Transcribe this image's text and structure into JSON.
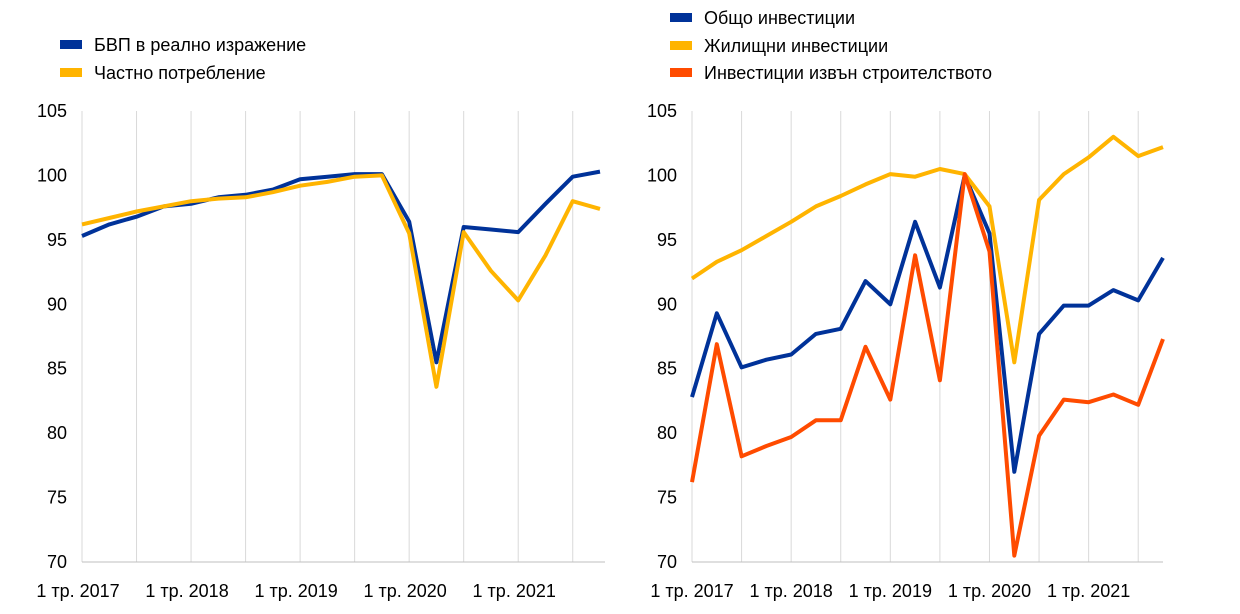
{
  "colors": {
    "blue": "#003299",
    "yellow": "#FFB400",
    "orange": "#FF4B00",
    "grid": "#d9d9d9",
    "axis": "#bfbfbf"
  },
  "chart_data": [
    {
      "type": "line",
      "x": [
        "1 тр. 2017",
        "2 тр. 2017",
        "3 тр. 2017",
        "4 тр. 2017",
        "1 тр. 2018",
        "2 тр. 2018",
        "3 тр. 2018",
        "4 тр. 2018",
        "1 тр. 2019",
        "2 тр. 2019",
        "3 тр. 2019",
        "4 тр. 2019",
        "1 тр. 2020",
        "2 тр. 2020",
        "3 тр. 2020",
        "4 тр. 2020",
        "1 тр. 2021",
        "2 тр. 2021",
        "3 тр. 2021",
        "4 тр. 2021"
      ],
      "x_tick_labels": [
        "1 тр. 2017",
        "1 тр. 2018",
        "1 тр. 2019",
        "1 тр. 2020",
        "1 тр. 2021"
      ],
      "y_ticks": [
        70,
        75,
        80,
        85,
        90,
        95,
        100,
        105
      ],
      "ylim": [
        70,
        105
      ],
      "grid": "vertical",
      "legend": "top-left",
      "series": [
        {
          "name": "БВП в реално изражение",
          "color": "#003299",
          "values": [
            95.3,
            96.2,
            96.8,
            97.6,
            97.8,
            98.3,
            98.5,
            98.9,
            99.7,
            99.9,
            100.1,
            100.1,
            96.4,
            85.5,
            96.0,
            95.8,
            95.6,
            97.8,
            99.9,
            100.3
          ]
        },
        {
          "name": "Частно потребление",
          "color": "#FFB400",
          "values": [
            96.2,
            96.7,
            97.2,
            97.6,
            98.0,
            98.2,
            98.3,
            98.7,
            99.2,
            99.5,
            99.9,
            100.0,
            95.5,
            83.6,
            95.6,
            92.6,
            90.3,
            93.8,
            98.0,
            97.4
          ]
        }
      ]
    },
    {
      "type": "line",
      "x": [
        "1 тр. 2017",
        "2 тр. 2017",
        "3 тр. 2017",
        "4 тр. 2017",
        "1 тр. 2018",
        "2 тр. 2018",
        "3 тр. 2018",
        "4 тр. 2018",
        "1 тр. 2019",
        "2 тр. 2019",
        "3 тр. 2019",
        "4 тр. 2019",
        "1 тр. 2020",
        "2 тр. 2020",
        "3 тр. 2020",
        "4 тр. 2020",
        "1 тр. 2021",
        "2 тр. 2021",
        "3 тр. 2021",
        "4 тр. 2021"
      ],
      "x_tick_labels": [
        "1 тр. 2017",
        "1 тр. 2018",
        "1 тр. 2019",
        "1 тр. 2020",
        "1 тр. 2021"
      ],
      "y_ticks": [
        70,
        75,
        80,
        85,
        90,
        95,
        100,
        105
      ],
      "ylim": [
        70,
        105
      ],
      "grid": "vertical",
      "legend": "top-left",
      "series": [
        {
          "name": "Общо инвестиции",
          "color": "#003299",
          "values": [
            82.8,
            89.3,
            85.1,
            85.7,
            86.1,
            87.7,
            88.1,
            91.8,
            90.0,
            96.4,
            91.3,
            100.0,
            95.5,
            77.0,
            87.7,
            89.9,
            89.9,
            91.1,
            90.3,
            93.6
          ]
        },
        {
          "name": "Жилищни инвестиции",
          "color": "#FFB400",
          "values": [
            92.0,
            93.3,
            94.2,
            95.3,
            96.4,
            97.6,
            98.4,
            99.3,
            100.1,
            99.9,
            100.5,
            100.1,
            97.6,
            85.5,
            98.1,
            100.1,
            101.4,
            103.0,
            101.5,
            102.2
          ]
        },
        {
          "name": "Инвестиции извън строителството",
          "color": "#FF4B00",
          "values": [
            76.2,
            86.9,
            78.2,
            79.0,
            79.7,
            81.0,
            81.0,
            86.7,
            82.6,
            93.8,
            84.1,
            100.1,
            94.1,
            70.5,
            79.8,
            82.6,
            82.4,
            83.0,
            82.2,
            87.3
          ]
        }
      ]
    }
  ]
}
